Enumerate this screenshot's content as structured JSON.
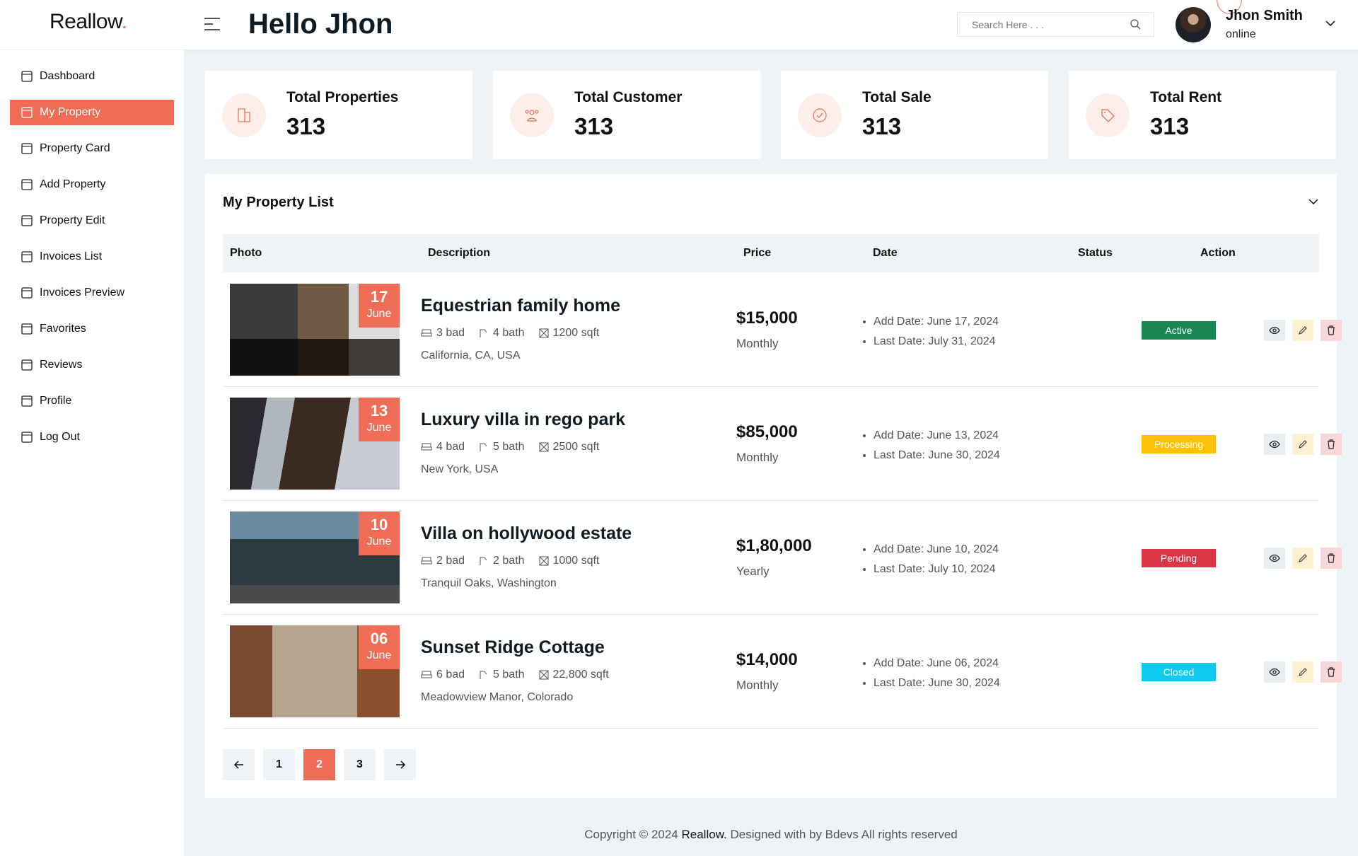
{
  "brand": {
    "name": "Reallow",
    "dot": "."
  },
  "header": {
    "title": "Hello Jhon",
    "search_placeholder": "Search Here . . .",
    "user_name": "Jhon Smith",
    "user_status": "online"
  },
  "sidebar": {
    "items": [
      {
        "label": "Dashboard",
        "icon": "layout-icon",
        "active": false
      },
      {
        "label": "My Property",
        "icon": "buildings-icon",
        "active": true
      },
      {
        "label": "Property Card",
        "icon": "building-icon",
        "active": false
      },
      {
        "label": "Add Property",
        "icon": "building-add-icon",
        "active": false
      },
      {
        "label": "Property Edit",
        "icon": "building-edit-icon",
        "active": false
      },
      {
        "label": "Invoices List",
        "icon": "document-icon",
        "active": false
      },
      {
        "label": "Invoices Preview",
        "icon": "receipt-icon",
        "active": false
      },
      {
        "label": "Favorites",
        "icon": "bookmark-icon",
        "active": false
      },
      {
        "label": "Reviews",
        "icon": "message-icon",
        "active": false
      },
      {
        "label": "Profile",
        "icon": "user-icon",
        "active": false
      },
      {
        "label": "Log Out",
        "icon": "logout-icon",
        "active": false
      }
    ]
  },
  "stats": [
    {
      "label": "Total Properties",
      "value": "313",
      "icon": "building-icon"
    },
    {
      "label": "Total Customer",
      "value": "313",
      "icon": "users-icon"
    },
    {
      "label": "Total Sale",
      "value": "313",
      "icon": "badge-check-icon"
    },
    {
      "label": "Total Rent",
      "value": "313",
      "icon": "tag-icon"
    }
  ],
  "list": {
    "title": "My Property List",
    "columns": [
      "Photo",
      "Description",
      "Price",
      "Date",
      "Status",
      "Action"
    ],
    "rows": [
      {
        "day": "17",
        "month": "June",
        "name": "Equestrian family home",
        "bed": "3 bad",
        "bath": "4 bath",
        "area": "1200 sqft",
        "location": "California, CA, USA",
        "price": "$15,000",
        "period": "Monthly",
        "add_date": "Add Date: June 17, 2024",
        "last_date": "Last Date: July 31, 2024",
        "status": "Active",
        "status_color": "#198754"
      },
      {
        "day": "13",
        "month": "June",
        "name": "Luxury villa in rego park",
        "bed": "4 bad",
        "bath": "5 bath",
        "area": "2500 sqft",
        "location": "New York, USA",
        "price": "$85,000",
        "period": "Monthly",
        "add_date": "Add Date: June 13, 2024",
        "last_date": "Last Date: June 30, 2024",
        "status": "Processing",
        "status_color": "#ffc107"
      },
      {
        "day": "10",
        "month": "June",
        "name": "Villa on hollywood estate",
        "bed": "2 bad",
        "bath": "2 bath",
        "area": "1000 sqft",
        "location": "Tranquil Oaks, Washington",
        "price": "$1,80,000",
        "period": "Yearly",
        "add_date": "Add Date: June 10, 2024",
        "last_date": "Last Date: July 10, 2024",
        "status": "Pending",
        "status_color": "#dc3545"
      },
      {
        "day": "06",
        "month": "June",
        "name": "Sunset Ridge Cottage",
        "bed": "6 bad",
        "bath": "5 bath",
        "area": "22,800 sqft",
        "location": "Meadowview Manor, Colorado",
        "price": "$14,000",
        "period": "Monthly",
        "add_date": "Add Date: June 06, 2024",
        "last_date": "Last Date: June 30, 2024",
        "status": "Closed",
        "status_color": "#0dcaf0"
      }
    ]
  },
  "pagination": {
    "pages": [
      "1",
      "2",
      "3"
    ],
    "current": "2"
  },
  "footer": {
    "prefix": "Copyright © 2024 ",
    "brand": "Reallow.",
    "suffix": " Designed with by Bdevs All rights reserved"
  },
  "colors": {
    "accent": "#ef6d57"
  }
}
